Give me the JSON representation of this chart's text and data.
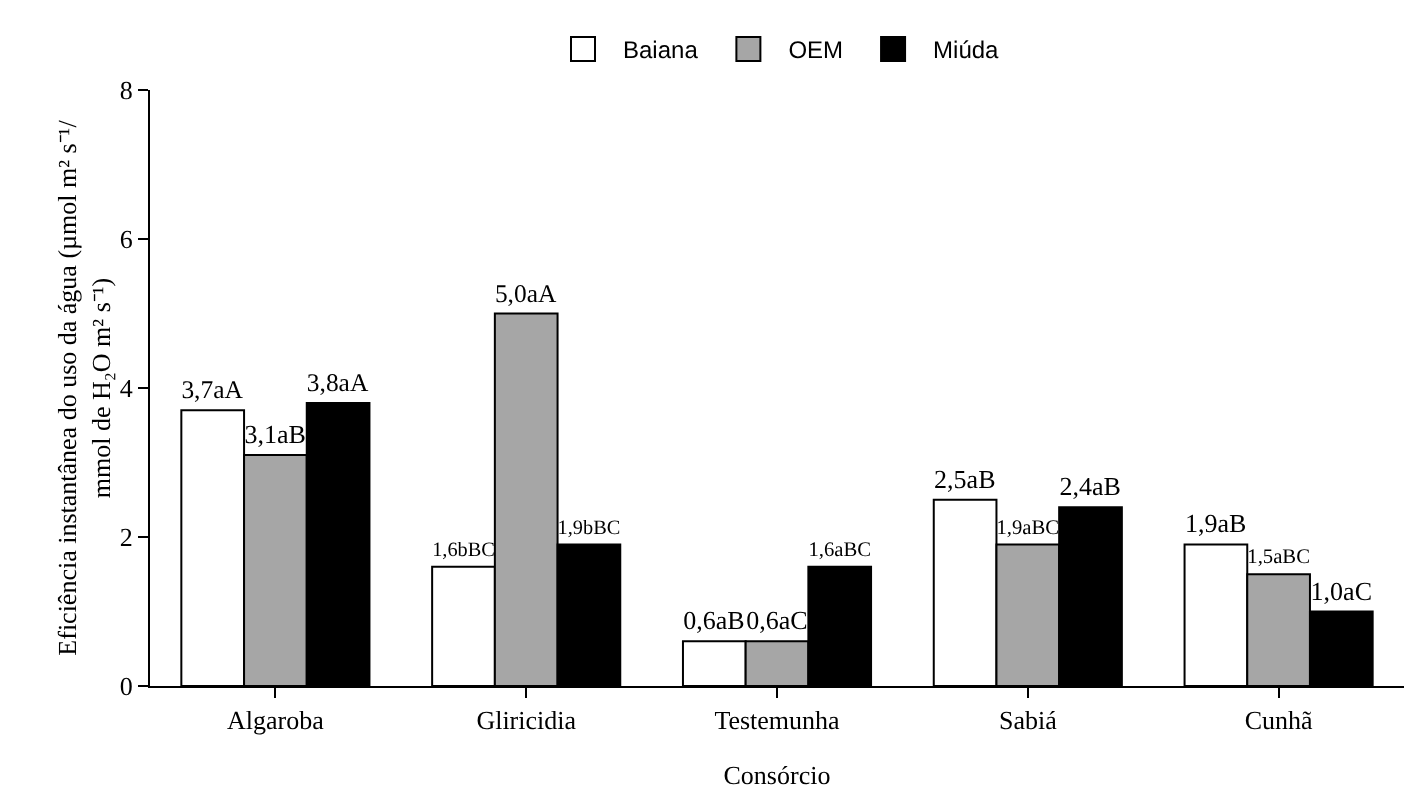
{
  "chart_data": {
    "type": "bar",
    "xlabel": "Consórcio",
    "ylabel": "Eficiência instantânea do uso da água (µmol m² s⁻¹/\nmmol de H₂O m² s⁻¹)",
    "categories": [
      "Algaroba",
      "Gliricidia",
      "Testemunha",
      "Sabiá",
      "Cunhã"
    ],
    "series": [
      {
        "name": "Baiana",
        "color": "#ffffff",
        "values": [
          3.7,
          1.6,
          0.6,
          2.5,
          1.9
        ],
        "value_labels": [
          "3,7aA",
          "1,6bBC",
          "0,6aB",
          "2,5aB",
          "1,9aB"
        ]
      },
      {
        "name": "OEM",
        "color": "#a6a6a6",
        "values": [
          3.1,
          5.0,
          0.6,
          1.9,
          1.5
        ],
        "value_labels": [
          "3,1aB",
          "5,0aA",
          "0,6aC",
          "1,9aBC",
          "1,5aBC"
        ]
      },
      {
        "name": "Miúda",
        "color": "#000000",
        "values": [
          3.8,
          1.9,
          1.6,
          2.4,
          1.0
        ],
        "value_labels": [
          "3,8aA",
          "1,9bBC",
          "1,6aBC",
          "2,4aB",
          "1,0aC"
        ]
      }
    ],
    "ylim": [
      0,
      8
    ],
    "yticks": [
      0,
      2,
      4,
      6,
      8
    ],
    "grid": false,
    "legend": "top"
  }
}
